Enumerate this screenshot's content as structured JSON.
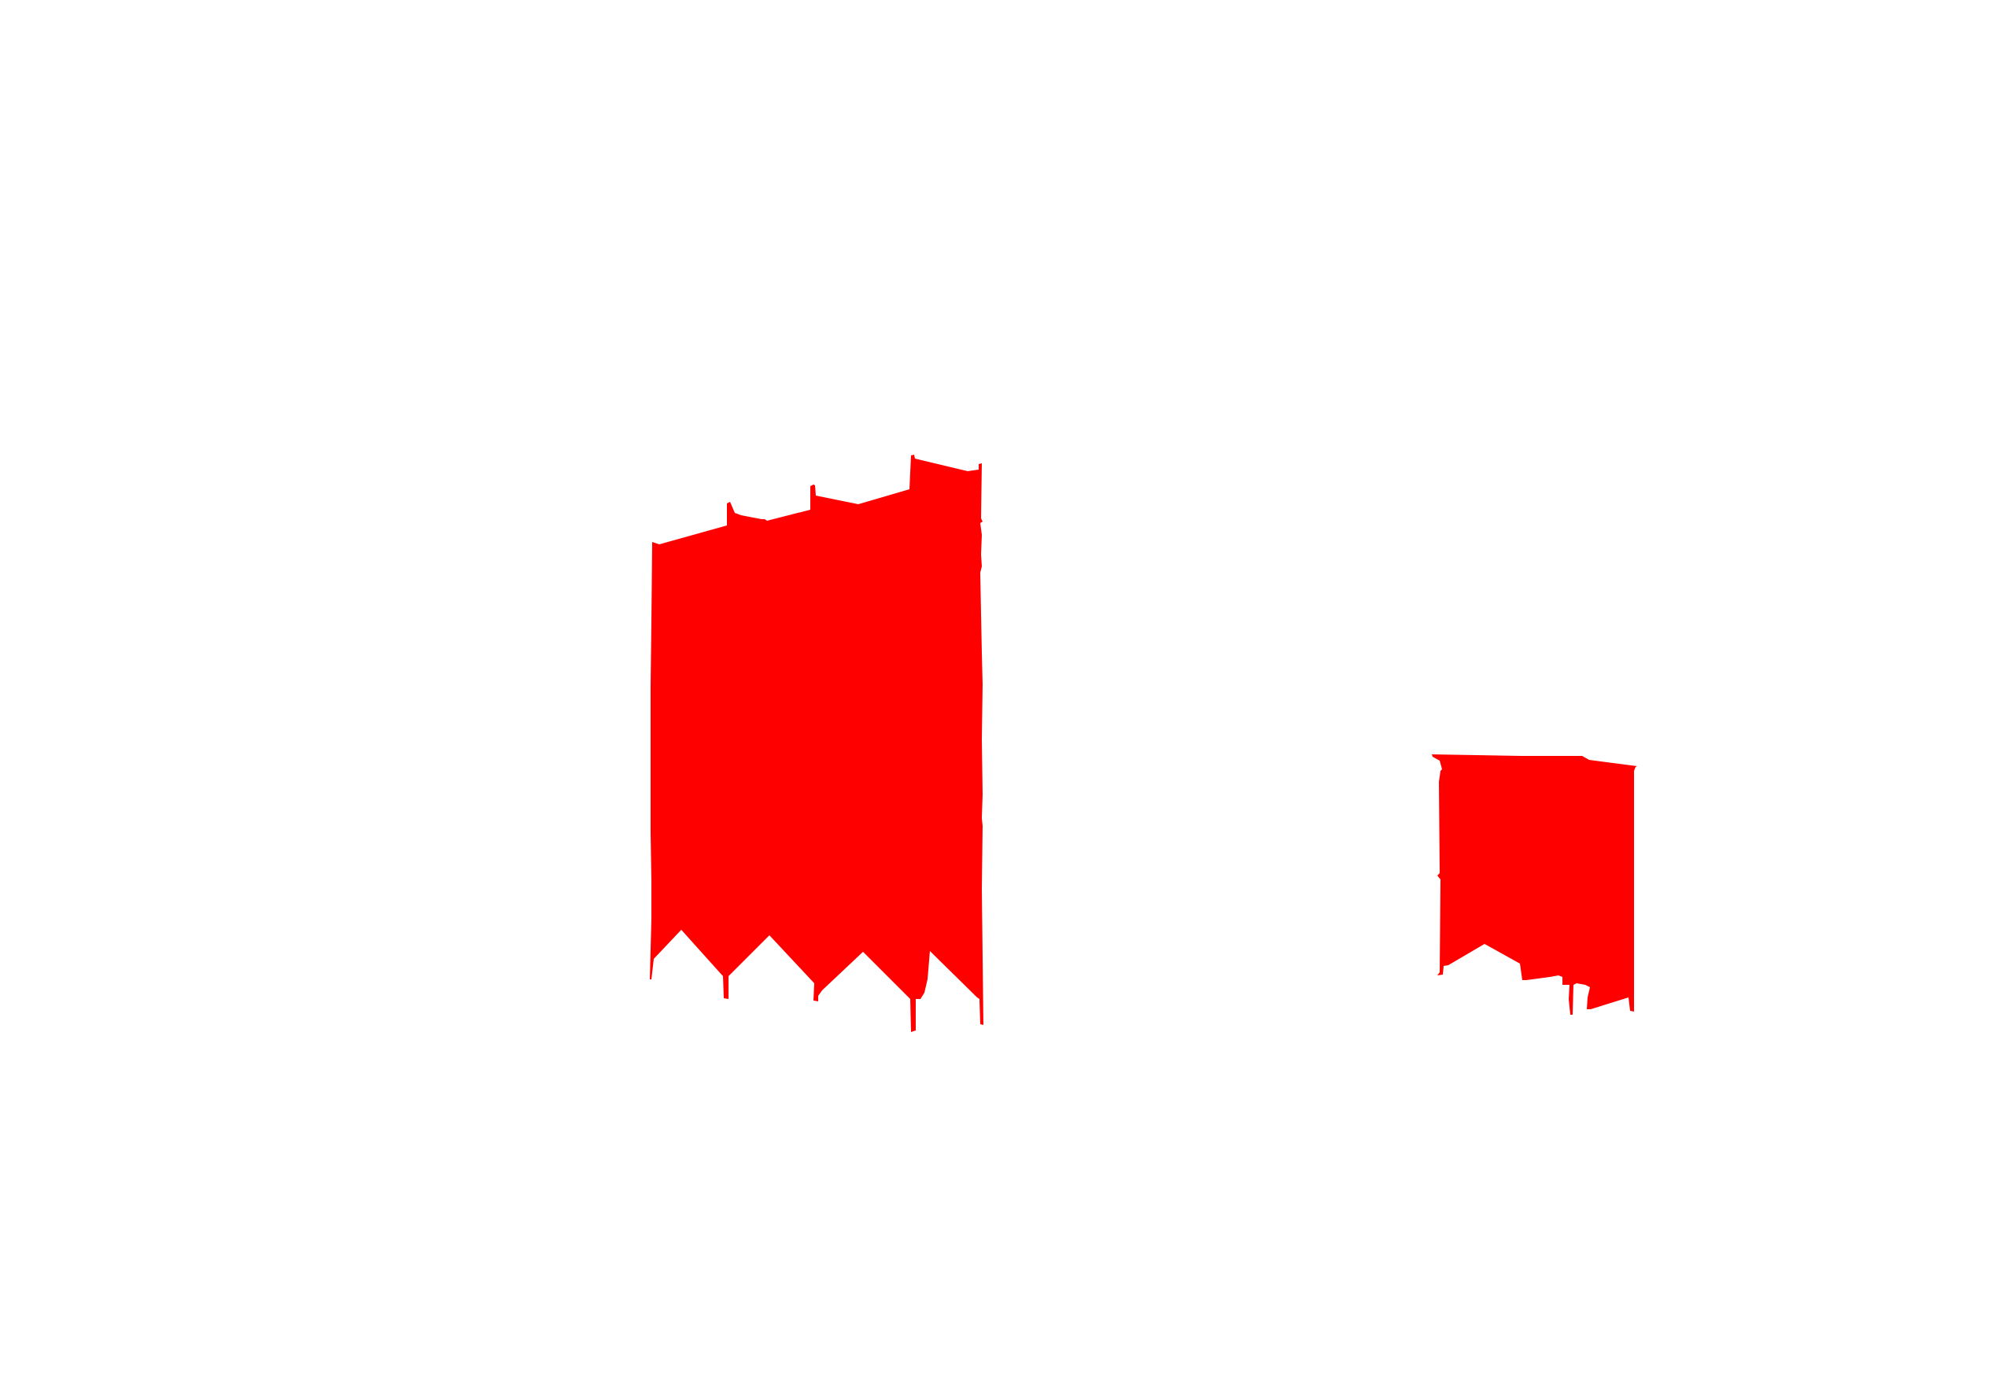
{
  "canvas": {
    "background_color": "#ffffff"
  },
  "shapes": [
    {
      "name": "tall-red-shape",
      "fill_color": "#ff0000"
    },
    {
      "name": "short-red-shape",
      "fill_color": "#ff0000"
    }
  ]
}
